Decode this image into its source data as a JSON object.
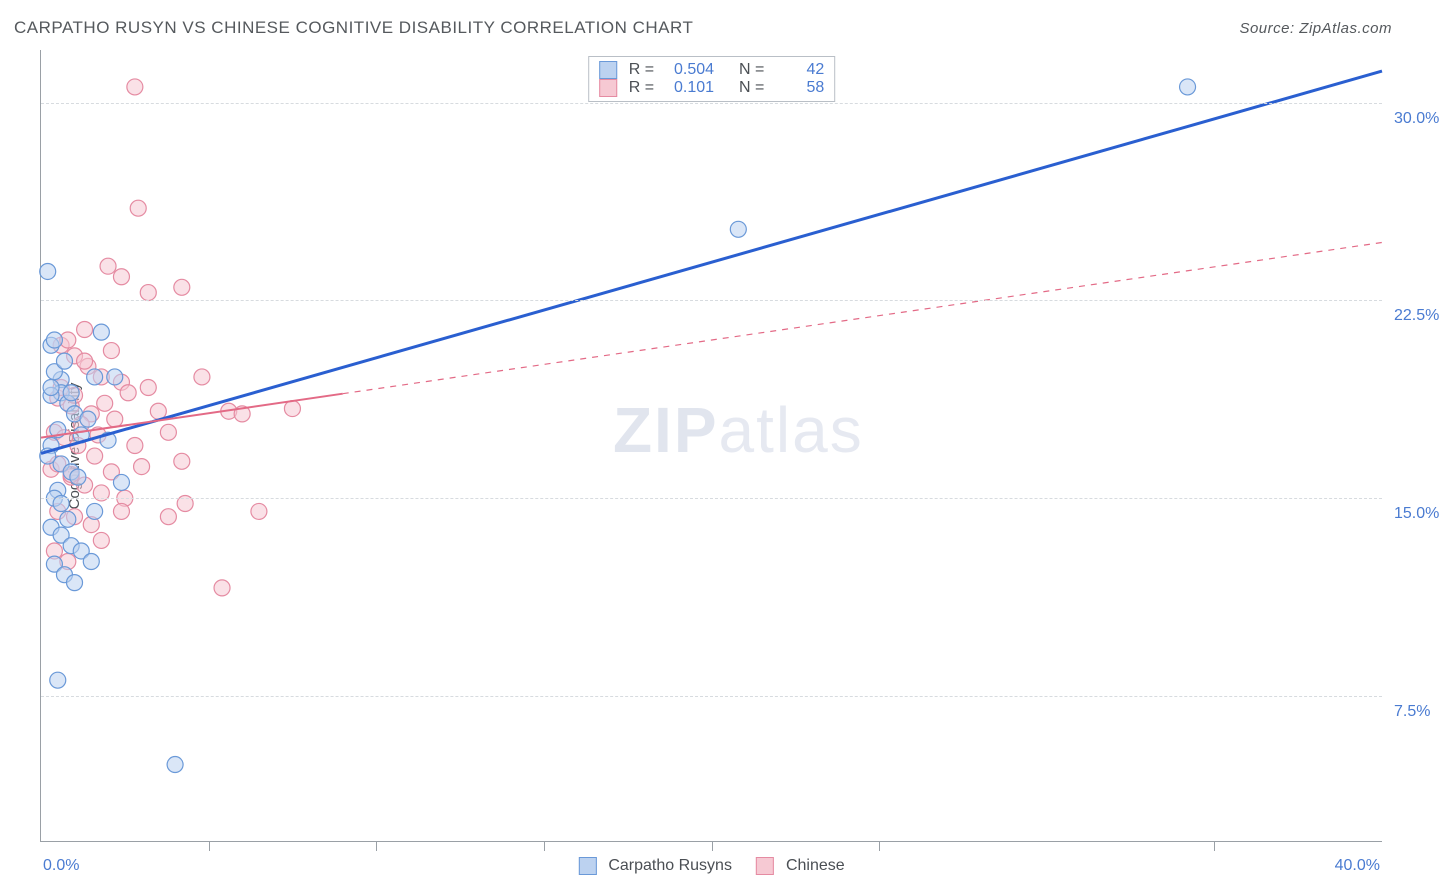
{
  "title": "CARPATHO RUSYN VS CHINESE COGNITIVE DISABILITY CORRELATION CHART",
  "source": "Source: ZipAtlas.com",
  "watermark_bold": "ZIP",
  "watermark_light": "atlas",
  "yaxis_title": "Cognitive Disability",
  "xaxis": {
    "min": 0,
    "max": 40,
    "label_min": "0.0%",
    "label_max": "40.0%",
    "ticks": [
      5,
      10,
      15,
      20,
      25,
      35
    ]
  },
  "yaxis": {
    "min": 2,
    "max": 32,
    "gridlines": [
      7.5,
      15.0,
      22.5,
      30.0
    ],
    "labels": [
      "7.5%",
      "15.0%",
      "22.5%",
      "30.0%"
    ]
  },
  "series": {
    "blue": {
      "name": "Carpatho Rusyns",
      "R": "0.504",
      "N": "42",
      "point_fill": "#bcd2f0",
      "point_stroke": "#6a99d8",
      "line_color": "#2a5fd0",
      "line_width": 3,
      "line_dash": "",
      "trend": {
        "x1": 0,
        "y1": 16.7,
        "x2": 40,
        "y2": 31.2
      },
      "points": [
        [
          0.2,
          23.6
        ],
        [
          0.3,
          20.8
        ],
        [
          0.4,
          21.0
        ],
        [
          0.6,
          19.5
        ],
        [
          0.6,
          19.0
        ],
        [
          0.3,
          18.9
        ],
        [
          0.8,
          18.6
        ],
        [
          1.0,
          18.2
        ],
        [
          0.5,
          17.6
        ],
        [
          1.2,
          17.4
        ],
        [
          0.3,
          17.0
        ],
        [
          0.6,
          16.3
        ],
        [
          0.9,
          16.0
        ],
        [
          0.2,
          16.6
        ],
        [
          0.4,
          19.8
        ],
        [
          0.7,
          20.2
        ],
        [
          1.6,
          19.6
        ],
        [
          2.2,
          19.6
        ],
        [
          0.5,
          15.3
        ],
        [
          0.4,
          15.0
        ],
        [
          0.8,
          14.2
        ],
        [
          1.6,
          14.5
        ],
        [
          0.3,
          13.9
        ],
        [
          0.6,
          13.6
        ],
        [
          0.9,
          13.2
        ],
        [
          1.2,
          13.0
        ],
        [
          0.4,
          12.5
        ],
        [
          0.7,
          12.1
        ],
        [
          1.0,
          11.8
        ],
        [
          1.5,
          12.6
        ],
        [
          0.5,
          8.1
        ],
        [
          4.0,
          4.9
        ],
        [
          2.4,
          15.6
        ],
        [
          1.8,
          21.3
        ],
        [
          1.4,
          18.0
        ],
        [
          2.0,
          17.2
        ],
        [
          20.8,
          25.2
        ],
        [
          34.2,
          30.6
        ],
        [
          0.3,
          19.2
        ],
        [
          0.9,
          19.0
        ],
        [
          1.1,
          15.8
        ],
        [
          0.6,
          14.8
        ]
      ]
    },
    "pink": {
      "name": "Chinese",
      "R": "0.101",
      "N": "58",
      "point_fill": "#f6c9d3",
      "point_stroke": "#e58ba2",
      "line_color": "#e36a86",
      "line_width": 2,
      "line_dash": "6 6",
      "trend_solid_until": 9.0,
      "trend": {
        "x1": 0,
        "y1": 17.3,
        "x2": 40,
        "y2": 24.7
      },
      "points": [
        [
          2.8,
          30.6
        ],
        [
          2.4,
          23.4
        ],
        [
          3.2,
          22.8
        ],
        [
          2.0,
          23.8
        ],
        [
          2.9,
          26.0
        ],
        [
          4.2,
          23.0
        ],
        [
          0.6,
          20.8
        ],
        [
          1.0,
          20.4
        ],
        [
          1.4,
          20.0
        ],
        [
          1.8,
          19.6
        ],
        [
          2.4,
          19.4
        ],
        [
          3.2,
          19.2
        ],
        [
          0.5,
          18.8
        ],
        [
          0.9,
          18.5
        ],
        [
          1.5,
          18.2
        ],
        [
          2.2,
          18.0
        ],
        [
          3.5,
          18.3
        ],
        [
          5.6,
          18.3
        ],
        [
          0.8,
          21.0
        ],
        [
          1.3,
          21.4
        ],
        [
          2.1,
          20.6
        ],
        [
          3.8,
          17.5
        ],
        [
          6.0,
          18.2
        ],
        [
          7.5,
          18.4
        ],
        [
          0.4,
          17.5
        ],
        [
          0.7,
          17.3
        ],
        [
          1.1,
          17.0
        ],
        [
          1.6,
          16.6
        ],
        [
          0.3,
          16.1
        ],
        [
          0.9,
          15.8
        ],
        [
          1.3,
          15.5
        ],
        [
          1.8,
          15.2
        ],
        [
          2.5,
          15.0
        ],
        [
          4.3,
          14.8
        ],
        [
          0.5,
          14.5
        ],
        [
          1.0,
          14.3
        ],
        [
          1.5,
          14.0
        ],
        [
          2.1,
          16.0
        ],
        [
          3.8,
          14.3
        ],
        [
          6.5,
          14.5
        ],
        [
          0.4,
          13.0
        ],
        [
          0.8,
          12.6
        ],
        [
          1.2,
          17.8
        ],
        [
          1.9,
          18.6
        ],
        [
          3.0,
          16.2
        ],
        [
          4.8,
          19.6
        ],
        [
          0.6,
          19.2
        ],
        [
          1.0,
          18.9
        ],
        [
          1.7,
          17.4
        ],
        [
          2.8,
          17.0
        ],
        [
          0.5,
          16.3
        ],
        [
          0.9,
          15.9
        ],
        [
          1.3,
          20.2
        ],
        [
          2.6,
          19.0
        ],
        [
          5.4,
          11.6
        ],
        [
          4.2,
          16.4
        ],
        [
          1.8,
          13.4
        ],
        [
          2.4,
          14.5
        ]
      ]
    }
  },
  "legend_top_label_R": "R =",
  "legend_top_label_N": "N ="
}
